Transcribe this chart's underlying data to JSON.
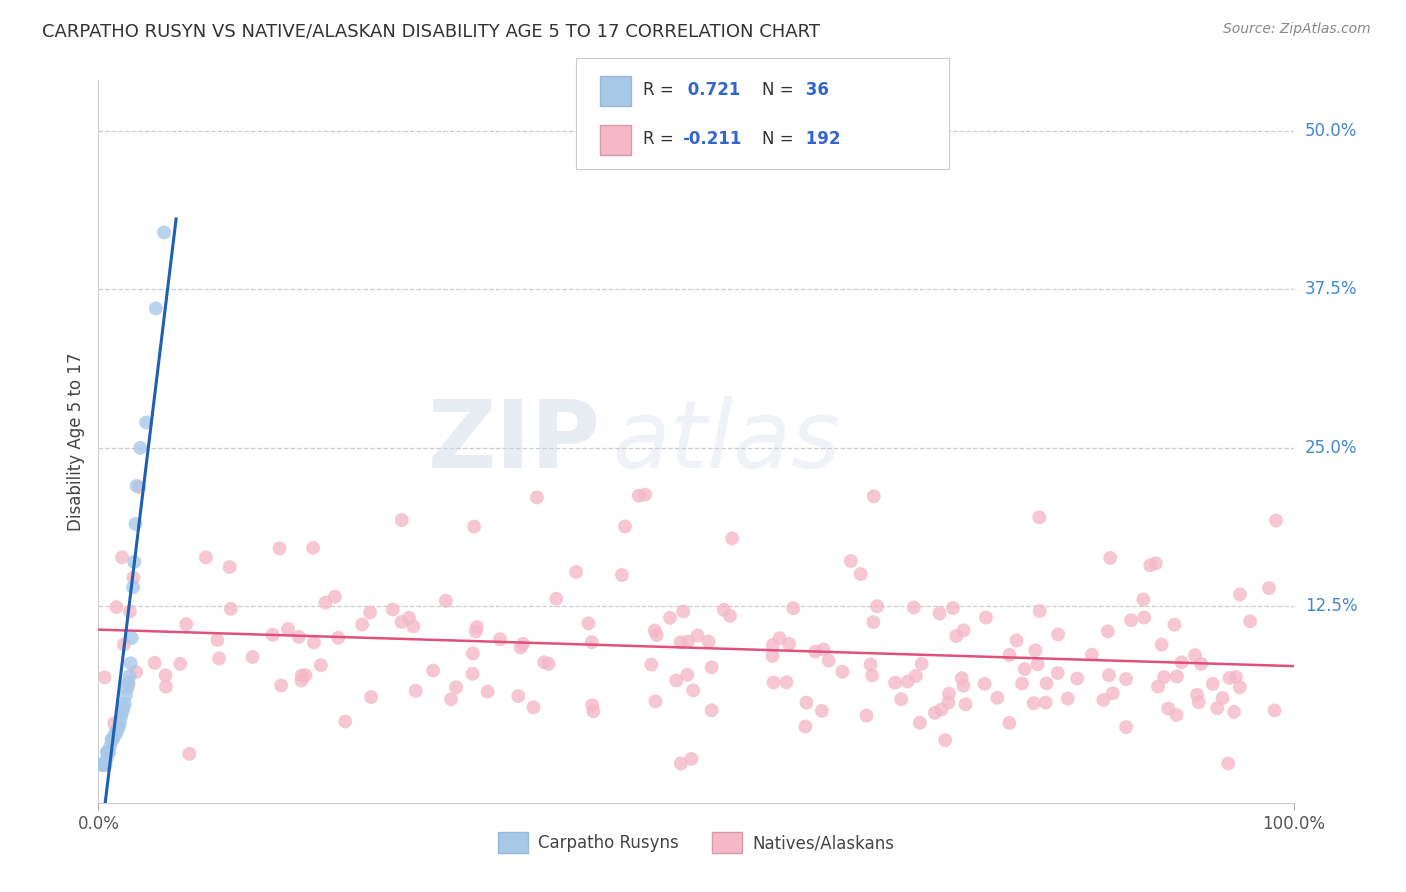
{
  "title": "CARPATHO RUSYN VS NATIVE/ALASKAN DISABILITY AGE 5 TO 17 CORRELATION CHART",
  "source": "Source: ZipAtlas.com",
  "ylabel": "Disability Age 5 to 17",
  "watermark_zip": "ZIP",
  "watermark_atlas": "atlas",
  "blue_R": 0.721,
  "blue_N": 36,
  "pink_R": -0.211,
  "pink_N": 192,
  "blue_color": "#a8c8e8",
  "pink_color": "#f4b8c8",
  "blue_line_color": "#2060b0",
  "pink_line_color": "#e0507a",
  "ytick_vals": [
    0.0,
    0.125,
    0.25,
    0.375,
    0.5
  ],
  "ytick_labels": [
    "",
    "12.5%",
    "25.0%",
    "37.5%",
    "50.0%"
  ],
  "xlim": [
    0.0,
    1.0
  ],
  "ylim": [
    -0.03,
    0.54
  ],
  "legend_label_blue": "Carpatho Rusyns",
  "legend_label_pink": "Natives/Alaskans",
  "blue_scatter_x": [
    0.002,
    0.003,
    0.004,
    0.005,
    0.006,
    0.007,
    0.007,
    0.008,
    0.009,
    0.01,
    0.011,
    0.012,
    0.013,
    0.014,
    0.015,
    0.016,
    0.017,
    0.018,
    0.019,
    0.02,
    0.021,
    0.022,
    0.023,
    0.024,
    0.025,
    0.026,
    0.027,
    0.028,
    0.029,
    0.03,
    0.031,
    0.032,
    0.035,
    0.04,
    0.048,
    0.055
  ],
  "blue_scatter_y": [
    0.0,
    0.0,
    0.0,
    0.0,
    0.0,
    0.005,
    0.01,
    0.01,
    0.01,
    0.015,
    0.02,
    0.02,
    0.022,
    0.025,
    0.025,
    0.028,
    0.03,
    0.033,
    0.038,
    0.042,
    0.045,
    0.048,
    0.055,
    0.06,
    0.065,
    0.07,
    0.08,
    0.1,
    0.14,
    0.16,
    0.19,
    0.22,
    0.25,
    0.27,
    0.36,
    0.42
  ],
  "pink_seed": 12345
}
